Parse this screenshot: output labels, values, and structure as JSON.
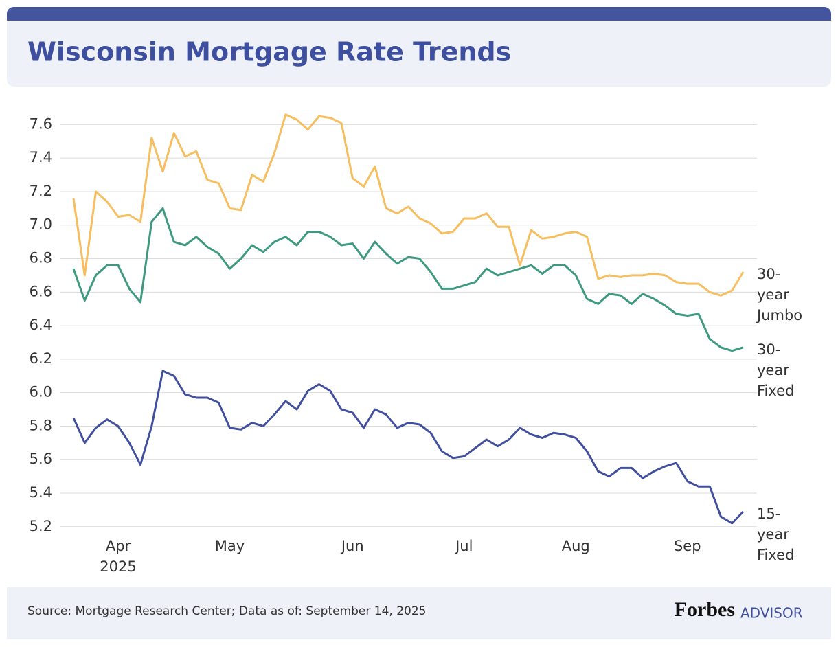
{
  "chart_data": {
    "type": "line",
    "title": "Wisconsin Mortgage Rate Trends",
    "categories": [
      null,
      null,
      null,
      null,
      "Apr 2025",
      null,
      null,
      null,
      null,
      null,
      null,
      null,
      null,
      null,
      "May",
      null,
      null,
      null,
      null,
      null,
      null,
      null,
      null,
      null,
      null,
      "Jun",
      null,
      null,
      null,
      null,
      null,
      null,
      null,
      null,
      null,
      "Jul",
      null,
      null,
      null,
      null,
      null,
      null,
      null,
      null,
      null,
      "Aug",
      null,
      null,
      null,
      null,
      null,
      null,
      null,
      null,
      null,
      "Sep",
      null,
      null,
      null,
      null,
      null
    ],
    "series": [
      {
        "name": "30-year Jumbo",
        "color": "#f6be5e",
        "values": [
          7.16,
          6.7,
          7.2,
          7.14,
          7.05,
          7.06,
          7.02,
          7.52,
          7.32,
          7.55,
          7.41,
          7.44,
          7.27,
          7.25,
          7.1,
          7.09,
          7.3,
          7.26,
          7.43,
          7.66,
          7.63,
          7.57,
          7.65,
          7.64,
          7.61,
          7.28,
          7.23,
          7.35,
          7.1,
          7.07,
          7.11,
          7.04,
          7.01,
          6.95,
          6.96,
          7.04,
          7.04,
          7.07,
          6.99,
          6.99,
          6.76,
          6.97,
          6.92,
          6.93,
          6.95,
          6.96,
          6.93,
          6.68,
          6.7,
          6.69,
          6.7,
          6.7,
          6.71,
          6.7,
          6.66,
          6.65,
          6.65,
          6.6,
          6.58,
          6.61,
          6.72
        ]
      },
      {
        "name": "30-year Fixed",
        "color": "#3e9a7f",
        "values": [
          6.74,
          6.55,
          6.7,
          6.76,
          6.76,
          6.62,
          6.54,
          7.02,
          7.1,
          6.9,
          6.88,
          6.93,
          6.87,
          6.83,
          6.74,
          6.8,
          6.88,
          6.84,
          6.9,
          6.93,
          6.88,
          6.96,
          6.96,
          6.93,
          6.88,
          6.89,
          6.8,
          6.9,
          6.83,
          6.77,
          6.81,
          6.8,
          6.72,
          6.62,
          6.62,
          6.64,
          6.66,
          6.74,
          6.7,
          6.72,
          6.74,
          6.76,
          6.71,
          6.76,
          6.76,
          6.7,
          6.56,
          6.53,
          6.59,
          6.58,
          6.53,
          6.59,
          6.56,
          6.52,
          6.47,
          6.46,
          6.47,
          6.32,
          6.27,
          6.25,
          6.27
        ]
      },
      {
        "name": "15-year Fixed",
        "color": "#414f9f",
        "values": [
          5.85,
          5.7,
          5.79,
          5.84,
          5.8,
          5.7,
          5.57,
          5.8,
          6.13,
          6.1,
          5.99,
          5.97,
          5.97,
          5.94,
          5.79,
          5.78,
          5.82,
          5.8,
          5.87,
          5.95,
          5.9,
          6.01,
          6.05,
          6.01,
          5.9,
          5.88,
          5.79,
          5.9,
          5.87,
          5.79,
          5.82,
          5.81,
          5.76,
          5.65,
          5.61,
          5.62,
          5.67,
          5.72,
          5.68,
          5.72,
          5.79,
          5.75,
          5.73,
          5.76,
          5.75,
          5.73,
          5.65,
          5.53,
          5.5,
          5.55,
          5.55,
          5.49,
          5.53,
          5.56,
          5.58,
          5.47,
          5.44,
          5.44,
          5.26,
          5.22,
          5.29
        ]
      }
    ],
    "ylim": [
      5.15,
      7.7
    ],
    "yticks": [
      5.2,
      5.4,
      5.6,
      5.8,
      {
        "value": 6,
        "label": "6.0"
      },
      6.2,
      6.4,
      6.6,
      6.8,
      {
        "value": 7,
        "label": "7.0"
      },
      7.2,
      7.4,
      7.6
    ],
    "grid": true,
    "source": "Source: Mortgage Research Center; Data as of: September 14, 2025",
    "logo": {
      "brand": "Forbes",
      "product": "ADVISOR"
    }
  }
}
